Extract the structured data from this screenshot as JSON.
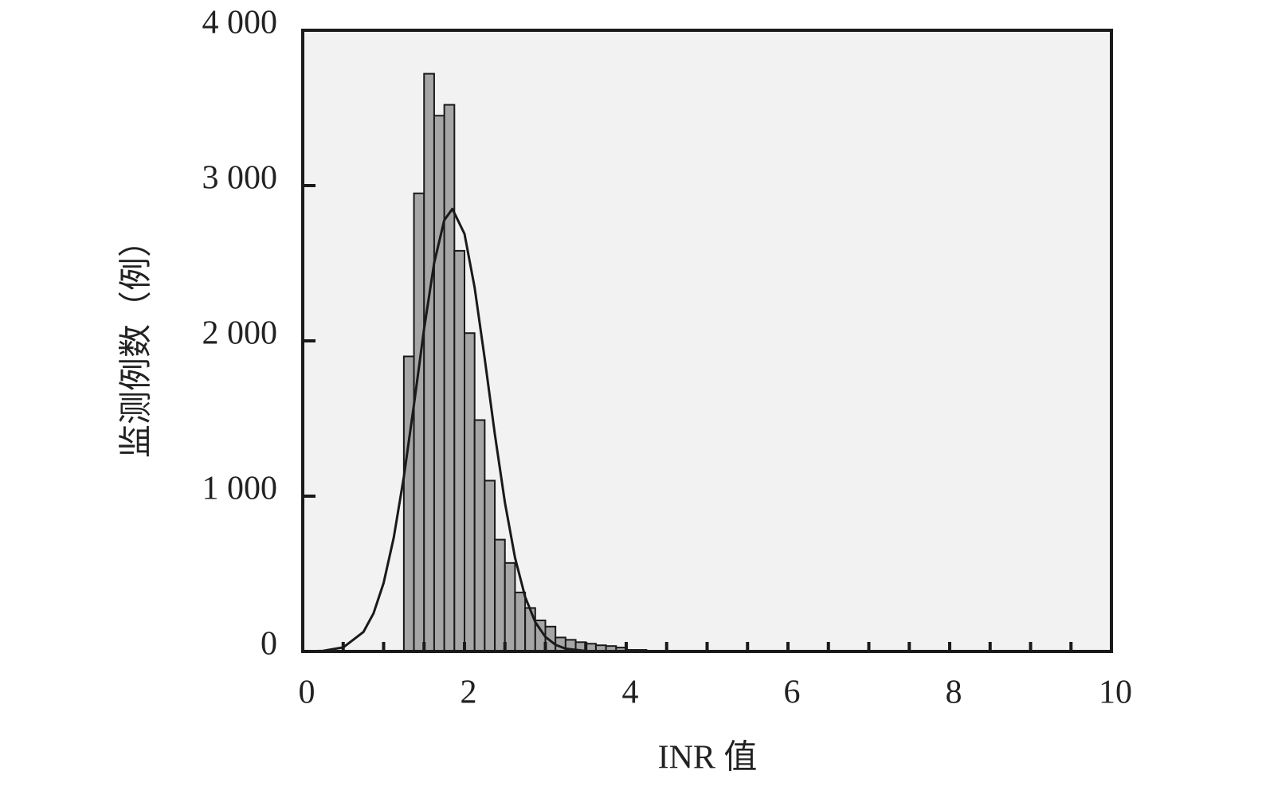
{
  "chart_data": {
    "type": "histogram",
    "bins": [
      1.125,
      1.25,
      1.375,
      1.5,
      1.625,
      1.75,
      1.875,
      2.0,
      2.125,
      2.25,
      2.375,
      2.5,
      2.625,
      2.75,
      2.875,
      3.0,
      3.125,
      3.25,
      3.375,
      3.5,
      3.625,
      3.75,
      3.875,
      4.0,
      4.125,
      4.25
    ],
    "values": [
      5,
      1900,
      2950,
      3720,
      3450,
      3520,
      2580,
      2050,
      1490,
      1100,
      720,
      570,
      380,
      280,
      200,
      160,
      90,
      75,
      60,
      50,
      40,
      35,
      25,
      10,
      10
    ],
    "color": "#a6a6a6",
    "curve": {
      "x": [
        0,
        0.25,
        0.5,
        0.75,
        0.875,
        1.0,
        1.125,
        1.25,
        1.375,
        1.5,
        1.625,
        1.75,
        1.85,
        2.0,
        2.125,
        2.25,
        2.375,
        2.5,
        2.625,
        2.75,
        2.875,
        3.0,
        3.125,
        3.25,
        3.5,
        3.75,
        4.0
      ],
      "values": [
        0,
        4,
        26,
        125,
        245,
        441,
        733,
        1125,
        1591,
        2077,
        2501,
        2777,
        2850,
        2689,
        2344,
        1885,
        1399,
        957,
        604,
        352,
        189,
        94,
        43,
        18,
        3,
        0,
        0
      ],
      "color": "#1a1a1a"
    },
    "xlabel": "INR 值",
    "ylabel": "监测例数（例）",
    "xlim": [
      0,
      10
    ],
    "xticks": [
      0,
      2,
      4,
      6,
      8,
      10
    ],
    "xminorticks": [
      0.5,
      1,
      1.5,
      2,
      2.5,
      3,
      3.5,
      4,
      4.5,
      5,
      5.5,
      6,
      6.5,
      7,
      7.5,
      8,
      8.5,
      9,
      9.5
    ],
    "ylim": [
      0,
      4000
    ],
    "yticks": [
      0,
      {
        "value": 1000,
        "label": "1 000"
      },
      {
        "value": 2000,
        "label": "2 000"
      },
      {
        "value": 3000,
        "label": "3 000"
      },
      {
        "value": 4000,
        "label": "4 000"
      }
    ],
    "background": "#f2f2f2"
  }
}
